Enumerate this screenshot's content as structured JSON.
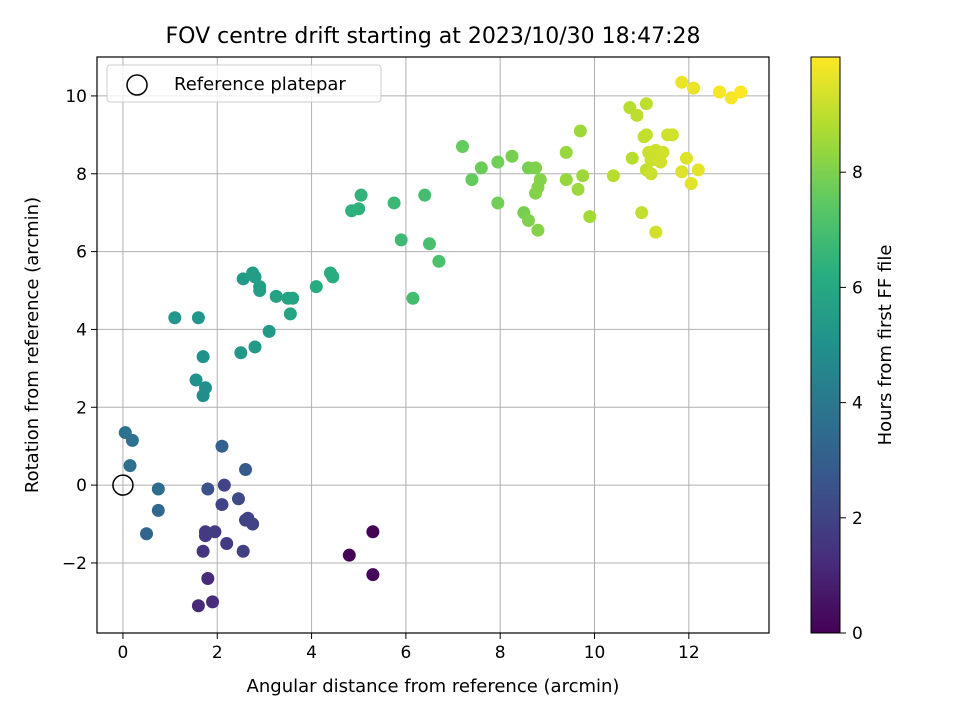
{
  "chart_data": {
    "type": "scatter",
    "title": "FOV centre drift starting at 2023/10/30 18:47:28",
    "xlabel": "Angular distance from reference (arcmin)",
    "ylabel": "Rotation from reference (arcmin)",
    "xlim": [
      -0.55,
      13.7
    ],
    "ylim": [
      -3.8,
      11.0
    ],
    "xticks": [
      0,
      2,
      4,
      6,
      8,
      10,
      12
    ],
    "yticks": [
      -2,
      0,
      2,
      4,
      6,
      8,
      10
    ],
    "grid": true,
    "legend": {
      "placement": "top-left",
      "entries": [
        "Reference platepar"
      ]
    },
    "reference_point": {
      "x": 0,
      "y": 0
    },
    "colorbar": {
      "label": "Hours from first FF file",
      "colormap": "viridis",
      "range": [
        0,
        10
      ],
      "ticks": [
        0,
        2,
        4,
        6,
        8
      ]
    },
    "points": [
      {
        "x": 4.8,
        "y": -1.8,
        "t": 0.1
      },
      {
        "x": 5.3,
        "y": -1.2,
        "t": 0.1
      },
      {
        "x": 5.3,
        "y": -2.3,
        "t": 0.15
      },
      {
        "x": 1.6,
        "y": -3.1,
        "t": 1.2
      },
      {
        "x": 1.9,
        "y": -3.0,
        "t": 1.3
      },
      {
        "x": 1.8,
        "y": -2.4,
        "t": 1.2
      },
      {
        "x": 1.7,
        "y": -1.7,
        "t": 1.5
      },
      {
        "x": 1.75,
        "y": -1.2,
        "t": 1.7
      },
      {
        "x": 1.75,
        "y": -1.3,
        "t": 1.7
      },
      {
        "x": 1.95,
        "y": -1.2,
        "t": 1.8
      },
      {
        "x": 2.2,
        "y": -1.5,
        "t": 1.8
      },
      {
        "x": 2.55,
        "y": -1.7,
        "t": 1.9
      },
      {
        "x": 2.1,
        "y": -0.5,
        "t": 2.0
      },
      {
        "x": 2.6,
        "y": -0.9,
        "t": 1.9
      },
      {
        "x": 2.75,
        "y": -1.0,
        "t": 2.0
      },
      {
        "x": 2.65,
        "y": -0.85,
        "t": 2.0
      },
      {
        "x": 2.45,
        "y": -0.35,
        "t": 2.2
      },
      {
        "x": 2.15,
        "y": 0.0,
        "t": 2.0
      },
      {
        "x": 1.8,
        "y": -0.1,
        "t": 2.5
      },
      {
        "x": 2.6,
        "y": 0.4,
        "t": 2.8
      },
      {
        "x": 2.1,
        "y": 1.0,
        "t": 3.0
      },
      {
        "x": 0.5,
        "y": -1.25,
        "t": 3.2
      },
      {
        "x": 0.75,
        "y": -0.65,
        "t": 3.4
      },
      {
        "x": 0.75,
        "y": -0.1,
        "t": 3.5
      },
      {
        "x": 0.15,
        "y": 0.5,
        "t": 3.7
      },
      {
        "x": 0.05,
        "y": 1.35,
        "t": 3.7
      },
      {
        "x": 0.2,
        "y": 1.15,
        "t": 3.7
      },
      {
        "x": 1.7,
        "y": 2.3,
        "t": 4.8
      },
      {
        "x": 1.75,
        "y": 2.5,
        "t": 4.9
      },
      {
        "x": 1.55,
        "y": 2.7,
        "t": 5.0
      },
      {
        "x": 1.7,
        "y": 3.3,
        "t": 5.0
      },
      {
        "x": 1.1,
        "y": 4.3,
        "t": 5.2
      },
      {
        "x": 1.6,
        "y": 4.3,
        "t": 5.2
      },
      {
        "x": 2.5,
        "y": 3.4,
        "t": 5.3
      },
      {
        "x": 2.8,
        "y": 3.55,
        "t": 5.4
      },
      {
        "x": 3.1,
        "y": 3.95,
        "t": 5.4
      },
      {
        "x": 2.55,
        "y": 5.3,
        "t": 5.4
      },
      {
        "x": 2.75,
        "y": 5.45,
        "t": 5.5
      },
      {
        "x": 2.8,
        "y": 5.35,
        "t": 5.5
      },
      {
        "x": 2.9,
        "y": 5.0,
        "t": 5.6
      },
      {
        "x": 2.9,
        "y": 5.1,
        "t": 5.6
      },
      {
        "x": 3.25,
        "y": 4.85,
        "t": 5.7
      },
      {
        "x": 3.5,
        "y": 4.8,
        "t": 5.8
      },
      {
        "x": 3.6,
        "y": 4.8,
        "t": 5.8
      },
      {
        "x": 3.55,
        "y": 4.4,
        "t": 5.8
      },
      {
        "x": 4.1,
        "y": 5.1,
        "t": 6.1
      },
      {
        "x": 4.4,
        "y": 5.45,
        "t": 6.2
      },
      {
        "x": 4.45,
        "y": 5.35,
        "t": 6.2
      },
      {
        "x": 4.85,
        "y": 7.05,
        "t": 6.4
      },
      {
        "x": 5.0,
        "y": 7.1,
        "t": 6.4
      },
      {
        "x": 5.05,
        "y": 7.45,
        "t": 6.5
      },
      {
        "x": 5.75,
        "y": 7.25,
        "t": 6.7
      },
      {
        "x": 5.9,
        "y": 6.3,
        "t": 6.8
      },
      {
        "x": 6.15,
        "y": 4.8,
        "t": 6.9
      },
      {
        "x": 6.4,
        "y": 7.45,
        "t": 6.9
      },
      {
        "x": 6.5,
        "y": 6.2,
        "t": 7.0
      },
      {
        "x": 6.7,
        "y": 5.75,
        "t": 7.1
      },
      {
        "x": 7.2,
        "y": 8.7,
        "t": 7.6
      },
      {
        "x": 7.4,
        "y": 7.85,
        "t": 7.6
      },
      {
        "x": 7.6,
        "y": 8.15,
        "t": 7.7
      },
      {
        "x": 7.95,
        "y": 8.3,
        "t": 7.8
      },
      {
        "x": 7.95,
        "y": 7.25,
        "t": 7.8
      },
      {
        "x": 8.25,
        "y": 8.45,
        "t": 7.9
      },
      {
        "x": 8.5,
        "y": 7.0,
        "t": 7.9
      },
      {
        "x": 8.6,
        "y": 8.15,
        "t": 7.9
      },
      {
        "x": 8.6,
        "y": 6.8,
        "t": 8.0
      },
      {
        "x": 8.75,
        "y": 8.15,
        "t": 8.0
      },
      {
        "x": 8.8,
        "y": 7.65,
        "t": 8.1
      },
      {
        "x": 8.75,
        "y": 7.5,
        "t": 8.1
      },
      {
        "x": 8.85,
        "y": 7.85,
        "t": 8.1
      },
      {
        "x": 8.8,
        "y": 6.55,
        "t": 8.1
      },
      {
        "x": 9.4,
        "y": 8.55,
        "t": 8.4
      },
      {
        "x": 9.4,
        "y": 7.85,
        "t": 8.4
      },
      {
        "x": 9.65,
        "y": 7.6,
        "t": 8.5
      },
      {
        "x": 9.75,
        "y": 7.95,
        "t": 8.5
      },
      {
        "x": 9.7,
        "y": 9.1,
        "t": 8.5
      },
      {
        "x": 9.9,
        "y": 6.9,
        "t": 8.6
      },
      {
        "x": 10.4,
        "y": 7.95,
        "t": 8.9
      },
      {
        "x": 10.75,
        "y": 9.7,
        "t": 8.9
      },
      {
        "x": 10.8,
        "y": 8.4,
        "t": 8.9
      },
      {
        "x": 10.9,
        "y": 9.5,
        "t": 9.0
      },
      {
        "x": 11.0,
        "y": 7.0,
        "t": 9.1
      },
      {
        "x": 11.1,
        "y": 9.8,
        "t": 9.0
      },
      {
        "x": 11.1,
        "y": 9.0,
        "t": 9.1
      },
      {
        "x": 11.05,
        "y": 8.95,
        "t": 9.1
      },
      {
        "x": 11.1,
        "y": 8.1,
        "t": 9.1
      },
      {
        "x": 11.15,
        "y": 8.55,
        "t": 9.2
      },
      {
        "x": 11.2,
        "y": 8.35,
        "t": 9.2
      },
      {
        "x": 11.2,
        "y": 8.0,
        "t": 9.2
      },
      {
        "x": 11.3,
        "y": 8.6,
        "t": 9.2
      },
      {
        "x": 11.4,
        "y": 8.3,
        "t": 9.3
      },
      {
        "x": 11.45,
        "y": 8.55,
        "t": 9.3
      },
      {
        "x": 11.55,
        "y": 9.0,
        "t": 9.3
      },
      {
        "x": 11.65,
        "y": 9.0,
        "t": 9.3
      },
      {
        "x": 11.3,
        "y": 6.5,
        "t": 9.3
      },
      {
        "x": 11.85,
        "y": 8.05,
        "t": 9.5
      },
      {
        "x": 11.95,
        "y": 8.4,
        "t": 9.5
      },
      {
        "x": 12.05,
        "y": 7.75,
        "t": 9.6
      },
      {
        "x": 12.2,
        "y": 8.1,
        "t": 9.6
      },
      {
        "x": 11.85,
        "y": 10.35,
        "t": 9.7
      },
      {
        "x": 12.1,
        "y": 10.2,
        "t": 9.7
      },
      {
        "x": 12.65,
        "y": 10.1,
        "t": 9.9
      },
      {
        "x": 12.9,
        "y": 9.95,
        "t": 9.9
      },
      {
        "x": 13.1,
        "y": 10.1,
        "t": 10.0
      }
    ]
  }
}
